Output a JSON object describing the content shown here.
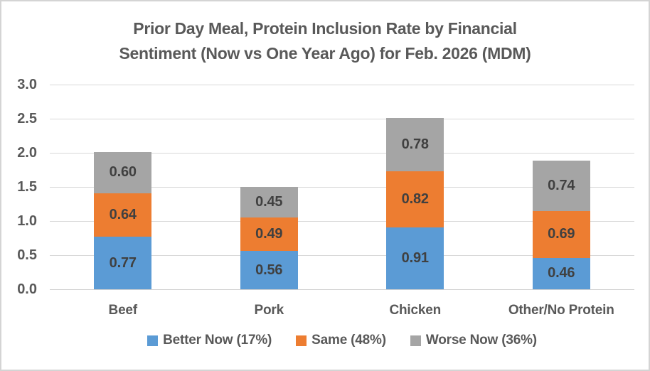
{
  "header": {
    "title_lines": [
      "Prior Day Meal, Protein Inclusion Rate by Financial",
      "Sentiment (Now vs One Year Ago) for Feb. 2026 (MDM)"
    ]
  },
  "chart_data": {
    "type": "bar",
    "stacked": true,
    "title": "Prior Day Meal, Protein Inclusion Rate by Financial Sentiment (Now vs One Year Ago) for Feb. 2026 (MDM)",
    "categories": [
      "Beef",
      "Pork",
      "Chicken",
      "Other/No Protein"
    ],
    "series": [
      {
        "name": "Better Now (17%)",
        "color": "#5B9BD5",
        "values": [
          0.77,
          0.56,
          0.91,
          0.46
        ]
      },
      {
        "name": "Same (48%)",
        "color": "#ED7D31",
        "values": [
          0.64,
          0.49,
          0.82,
          0.69
        ]
      },
      {
        "name": "Worse Now (36%)",
        "color": "#A5A5A5",
        "values": [
          0.6,
          0.45,
          0.78,
          0.74
        ]
      }
    ],
    "totals": [
      2.01,
      1.5,
      2.51,
      1.89
    ],
    "ylim": [
      0.0,
      3.0
    ],
    "ytick_step": 0.5,
    "ytick_labels": [
      "0.0",
      "0.5",
      "1.0",
      "1.5",
      "2.0",
      "2.5",
      "3.0"
    ],
    "grid": true,
    "data_labels": true,
    "legend_position": "bottom",
    "colors": {
      "gridline": "#D9D9D9",
      "axis_text": "#595959",
      "title_text": "#595959",
      "data_label_text": "#404040",
      "background": "#FFFFFF",
      "border": "#D4D4D4"
    }
  }
}
